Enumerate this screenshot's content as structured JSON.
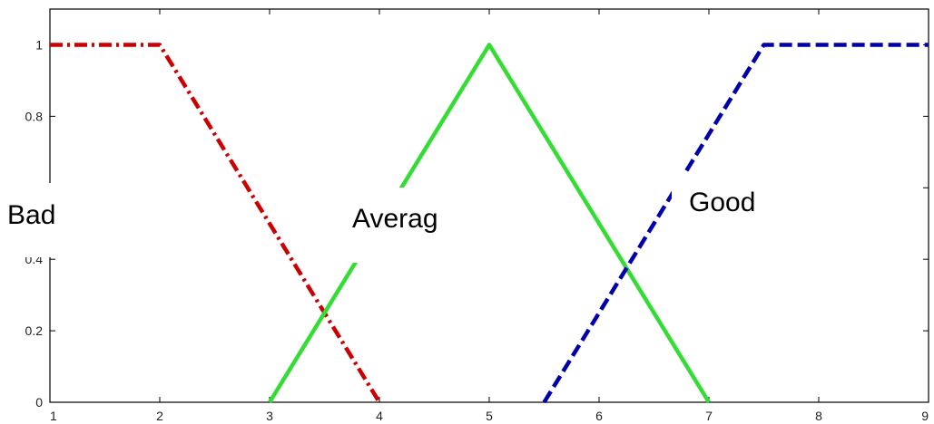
{
  "chart_data": {
    "type": "line",
    "title": "",
    "xlabel": "",
    "ylabel": "",
    "xlim": [
      1,
      9
    ],
    "ylim": [
      0,
      1.1
    ],
    "x_ticks": [
      "1",
      "2",
      "3",
      "4",
      "5",
      "6",
      "7",
      "8",
      "9"
    ],
    "y_ticks": [
      "0",
      "0.2",
      "0.4",
      "0.6",
      "0.8",
      "1"
    ],
    "grid": false,
    "series": [
      {
        "name": "Bad",
        "color": "#cc0000",
        "style": "dash-dot",
        "x": [
          1,
          2,
          4
        ],
        "y": [
          1,
          1,
          0
        ]
      },
      {
        "name": "Averag",
        "color": "#33dd33",
        "style": "solid",
        "x": [
          3,
          5,
          7
        ],
        "y": [
          0,
          1,
          0
        ]
      },
      {
        "name": "Good",
        "color": "#0000aa",
        "style": "dashed",
        "x": [
          5.5,
          7.5,
          9
        ],
        "y": [
          0,
          1,
          1
        ]
      }
    ],
    "annotations": [
      {
        "text": "Bad",
        "color": "#e00000"
      },
      {
        "text": "Averag",
        "color": "#8fce4a"
      },
      {
        "text": "Good",
        "color": "#4f81bd"
      }
    ]
  }
}
